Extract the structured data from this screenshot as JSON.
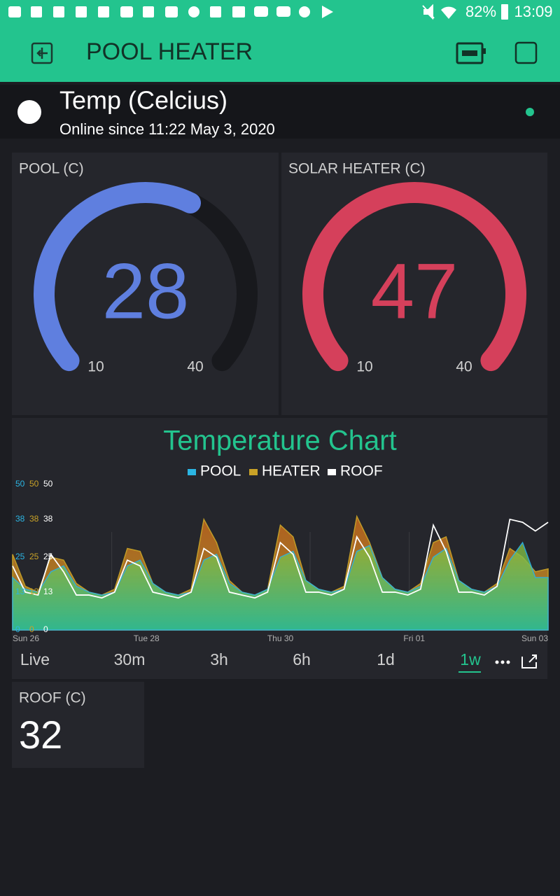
{
  "status_bar": {
    "battery": "82%",
    "time": "13:09"
  },
  "header": {
    "title": "POOL HEATER"
  },
  "device": {
    "name": "Temp (Celcius)",
    "status": "Online since 11:22 May 3, 2020"
  },
  "gauges": [
    {
      "label": "POOL (C)",
      "value": 28,
      "min": 10,
      "max": 40,
      "color": "#5f7fdf"
    },
    {
      "label": "SOLAR  HEATER (C)",
      "value": 47,
      "min": 10,
      "max": 40,
      "color": "#d5405b"
    }
  ],
  "chart": {
    "type": "area",
    "title": "Temperature Chart",
    "ylim": [
      0,
      50
    ],
    "yticks": [
      0,
      13,
      25,
      38,
      50
    ],
    "x_labels": [
      "Sun 26",
      "Tue 28",
      "Thu 30",
      "Fri 01",
      "Sun 03"
    ],
    "series": [
      {
        "name": "POOL",
        "color": "#2bb5e3",
        "values": [
          18,
          14,
          13,
          20,
          22,
          15,
          13,
          12,
          13,
          22,
          24,
          16,
          13,
          12,
          13,
          24,
          26,
          16,
          13,
          12,
          14,
          25,
          27,
          17,
          14,
          13,
          14,
          27,
          29,
          18,
          14,
          13,
          15,
          25,
          28,
          17,
          14,
          13,
          15,
          24,
          30,
          18,
          18
        ]
      },
      {
        "name": "HEATER",
        "color": "#c9a227",
        "values": [
          26,
          15,
          13,
          25,
          24,
          16,
          13,
          12,
          14,
          28,
          27,
          16,
          13,
          12,
          14,
          38,
          30,
          17,
          13,
          12,
          14,
          36,
          32,
          17,
          14,
          13,
          15,
          39,
          30,
          18,
          14,
          13,
          16,
          30,
          32,
          17,
          14,
          13,
          16,
          28,
          25,
          20,
          21
        ]
      },
      {
        "name": "ROOF",
        "color": "#ffffff",
        "values": [
          22,
          13,
          12,
          26,
          20,
          12,
          12,
          11,
          13,
          24,
          22,
          13,
          12,
          11,
          13,
          28,
          25,
          13,
          12,
          11,
          13,
          30,
          26,
          13,
          13,
          12,
          14,
          32,
          25,
          13,
          13,
          12,
          14,
          36,
          27,
          13,
          13,
          12,
          15,
          38,
          37,
          34,
          37
        ]
      }
    ],
    "periods": [
      "Live",
      "30m",
      "3h",
      "6h",
      "1d",
      "1w"
    ]
  },
  "value_display": {
    "label": "ROOF (C)",
    "value": 32
  }
}
